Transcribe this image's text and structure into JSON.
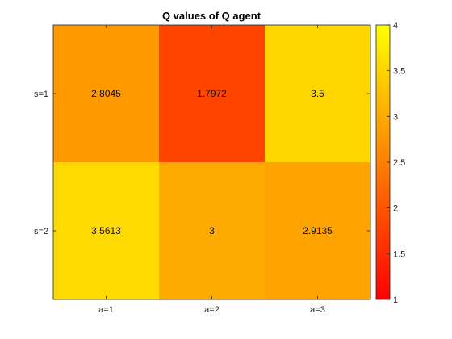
{
  "chart_data": {
    "type": "heatmap",
    "title": "Q values of Q agent",
    "x_categories": [
      "a=1",
      "a=2",
      "a=3"
    ],
    "y_categories": [
      "s=1",
      "s=2"
    ],
    "values": [
      [
        2.8045,
        1.7972,
        3.5
      ],
      [
        3.5613,
        3,
        2.9135
      ]
    ],
    "cell_labels": [
      [
        "2.8045",
        "1.7972",
        "3.5"
      ],
      [
        "3.5613",
        "3",
        "2.9135"
      ]
    ],
    "color_range": [
      1,
      4
    ],
    "colormap": "autumn",
    "colormap_colors": [
      "#ff0000",
      "#ffff00"
    ],
    "colorbar_ticks": [
      1,
      1.5,
      2,
      2.5,
      3,
      3.5,
      4
    ],
    "colorbar_tick_labels": [
      "1",
      "1.5",
      "2",
      "2.5",
      "3",
      "3.5",
      "4"
    ],
    "grid": false,
    "colorbar_placement": "right"
  }
}
